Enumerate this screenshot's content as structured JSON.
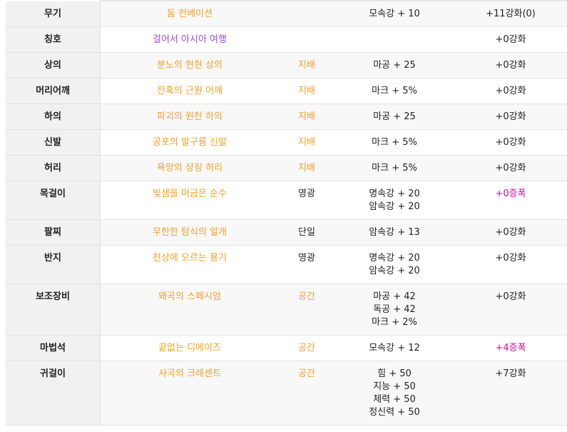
{
  "colors": {
    "legendary": "#f0a030",
    "rare": "#9d4bd6",
    "amplify": "#c8109a"
  },
  "rows": [
    {
      "slot": "무기",
      "item": "둠 컨베이션",
      "item_color": "orange",
      "grade": "",
      "grade_color": "orange",
      "stats": [
        "모속강 + 10"
      ],
      "enhance": "+11강화(0)",
      "enhance_color": "dark",
      "highlight": true
    },
    {
      "slot": "칭호",
      "item": "걸어서 아시아 여행",
      "item_color": "purple",
      "grade": "",
      "grade_color": "orange",
      "stats": [],
      "enhance": "+0강화",
      "enhance_color": "dark",
      "highlight": false
    },
    {
      "slot": "상의",
      "item": "분노의 현현 상의",
      "item_color": "orange",
      "grade": "지배",
      "grade_color": "orange",
      "stats": [
        "마공 + 25"
      ],
      "enhance": "+0강화",
      "enhance_color": "dark",
      "highlight": true
    },
    {
      "slot": "머리어깨",
      "item": "잔혹의 근원 어깨",
      "item_color": "orange",
      "grade": "지배",
      "grade_color": "orange",
      "stats": [
        "마크 + 5%"
      ],
      "enhance": "+0강화",
      "enhance_color": "dark",
      "highlight": false
    },
    {
      "slot": "하의",
      "item": "파괴의 원천 하의",
      "item_color": "orange",
      "grade": "지배",
      "grade_color": "orange",
      "stats": [
        "마공 + 25"
      ],
      "enhance": "+0강화",
      "enhance_color": "dark",
      "highlight": true
    },
    {
      "slot": "신발",
      "item": "공포의 발구름 신발",
      "item_color": "orange",
      "grade": "지배",
      "grade_color": "orange",
      "stats": [
        "마크 + 5%"
      ],
      "enhance": "+0강화",
      "enhance_color": "dark",
      "highlight": false
    },
    {
      "slot": "허리",
      "item": "욕망의 상징 허리",
      "item_color": "orange",
      "grade": "지배",
      "grade_color": "orange",
      "stats": [
        "마크 + 5%"
      ],
      "enhance": "+0강화",
      "enhance_color": "dark",
      "highlight": true
    },
    {
      "slot": "목걸이",
      "item": "빛샘을 머금은 순수",
      "item_color": "orange",
      "grade": "영광",
      "grade_color": "dark",
      "stats": [
        "명속강 + 20",
        "암속강 + 20"
      ],
      "enhance": "+0증폭",
      "enhance_color": "pink",
      "highlight": false
    },
    {
      "slot": "팔찌",
      "item": "무한한 탐식의 얼개",
      "item_color": "orange",
      "grade": "단일",
      "grade_color": "dark",
      "stats": [
        "암속강 + 13"
      ],
      "enhance": "+0강화",
      "enhance_color": "dark",
      "highlight": true
    },
    {
      "slot": "반지",
      "item": "천상에 오르는 용기",
      "item_color": "orange",
      "grade": "영광",
      "grade_color": "dark",
      "stats": [
        "명속강 + 20",
        "암속강 + 20"
      ],
      "enhance": "+0강화",
      "enhance_color": "dark",
      "highlight": false
    },
    {
      "slot": "보조장비",
      "item": "왜곡의 스페시엄",
      "item_color": "orange",
      "grade": "공간",
      "grade_color": "orange",
      "stats": [
        "마공 + 42",
        "독공 + 42",
        "마크 + 2%"
      ],
      "enhance": "+0강화",
      "enhance_color": "dark",
      "highlight": true
    },
    {
      "slot": "마법석",
      "item": "끝없는 디메이즈",
      "item_color": "orange",
      "grade": "공간",
      "grade_color": "orange",
      "stats": [
        "모속강 + 12"
      ],
      "enhance": "+4증폭",
      "enhance_color": "pink",
      "highlight": false
    },
    {
      "slot": "귀걸이",
      "item": "사곡의 크레센트",
      "item_color": "orange",
      "grade": "공간",
      "grade_color": "orange",
      "stats": [
        "힘 + 50",
        "지능 + 50",
        "체력 + 50",
        "정신력 + 50"
      ],
      "enhance": "+7강화",
      "enhance_color": "dark",
      "highlight": true
    }
  ]
}
